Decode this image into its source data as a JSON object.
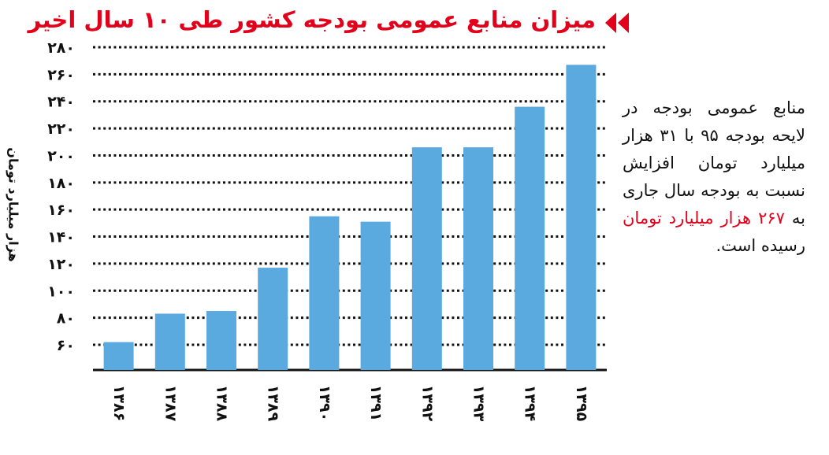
{
  "title": "میزان منابع عمومی بودجه کشور طی ۱۰ سال اخیر",
  "colors": {
    "accent": "#e2001a",
    "bar": "#5aa9df",
    "grid": "#111111"
  },
  "note": {
    "part1": "منابع عمومی بودجه در لایحه بودجه ۹۵ با ۳۱ هزار میلیارد تومان افزایش نسبت به بودجه سال جاری به",
    "highlight": "۲۶۷ هزار میلیارد تومان",
    "part2": "رسیده است."
  },
  "chart_data": {
    "type": "bar",
    "ylabel": "هزار میلیارد تومان",
    "ylim": [
      50,
      280
    ],
    "yticks": [
      60,
      80,
      100,
      120,
      140,
      160,
      180,
      200,
      220,
      240,
      260,
      280
    ],
    "ytick_labels": [
      "۶۰",
      "۸۰",
      "۱۰۰",
      "۱۲۰",
      "۱۴۰",
      "۱۶۰",
      "۱۸۰",
      "۲۰۰",
      "۲۲۰",
      "۲۴۰",
      "۲۶۰",
      "۲۸۰"
    ],
    "grid": true,
    "categories": [
      "۱۳۸۶",
      "۱۳۸۷",
      "۱۳۸۸",
      "۱۳۸۹",
      "۱۳۹۰",
      "۱۳۹۱",
      "۱۳۹۲",
      "۱۳۹۳",
      "۱۳۹۴",
      "۱۳۹۵"
    ],
    "values": [
      62,
      83,
      85,
      117,
      155,
      151,
      206,
      206,
      236,
      267
    ]
  }
}
